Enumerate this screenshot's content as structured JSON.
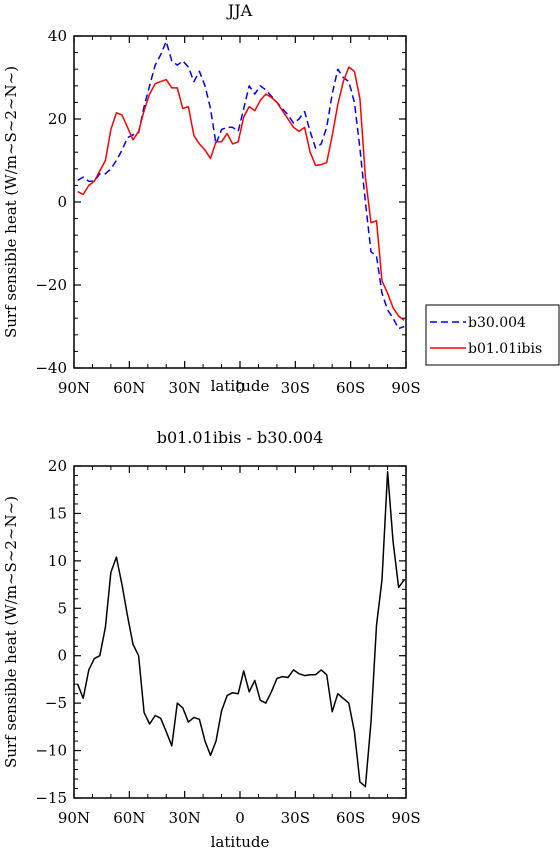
{
  "colors": {
    "series1": "#0000ff",
    "series2": "#ff0000",
    "diff": "#000000",
    "axis": "#000000"
  },
  "chart_data": [
    {
      "type": "line",
      "title": "JJA",
      "xlabel": "latitude",
      "ylabel": "Surf sensible heat (W/m~S~2~N~)",
      "x_tick_labels": [
        "90N",
        "60N",
        "30N",
        "0",
        "30S",
        "60S",
        "90S"
      ],
      "x_tick_values": [
        -90,
        -60,
        -30,
        0,
        30,
        60,
        90
      ],
      "xlim": [
        -90,
        90
      ],
      "ylim": [
        -40,
        40
      ],
      "y_ticks": [
        -40,
        -20,
        0,
        20,
        40
      ],
      "y_tick_labels": [
        "−40",
        "−20",
        "0",
        "20",
        "40"
      ],
      "legend_position": "right",
      "x": [
        -88,
        -85,
        -82,
        -79,
        -76,
        -73,
        -70,
        -67,
        -64,
        -61,
        -58,
        -55,
        -52,
        -49,
        -46,
        -43,
        -40,
        -37,
        -34,
        -31,
        -28,
        -25,
        -22,
        -19,
        -16,
        -13,
        -10,
        -7,
        -4,
        -1,
        2,
        5,
        8,
        11,
        14,
        17,
        20,
        23,
        26,
        29,
        32,
        35,
        38,
        41,
        44,
        47,
        50,
        53,
        56,
        59,
        62,
        65,
        68,
        71,
        74,
        77,
        80,
        83,
        86,
        89
      ],
      "series": [
        {
          "name": "b30.004",
          "style": "dashed",
          "values": [
            5.2,
            6,
            5,
            5,
            6.8,
            6.8,
            8,
            10,
            12.5,
            15.5,
            16.2,
            16.7,
            23,
            28,
            33,
            35.5,
            38.7,
            34,
            33,
            34,
            32.5,
            29,
            31.5,
            28,
            22.5,
            14,
            17.5,
            18,
            18,
            17,
            22.5,
            28,
            26,
            28,
            27,
            25.5,
            24,
            22.5,
            21,
            19,
            20,
            21.8,
            17,
            13,
            14,
            18,
            26,
            32,
            30,
            29,
            24,
            13,
            0,
            -12,
            -13,
            -22,
            -26,
            -28,
            -30.5,
            -30
          ]
        },
        {
          "name": "b01.01ibis",
          "style": "solid",
          "values": [
            2.5,
            1.8,
            4,
            5,
            7.5,
            10,
            17.5,
            21.5,
            21,
            18,
            15,
            17,
            22,
            26,
            28.5,
            29,
            29.5,
            27.5,
            27.5,
            22.5,
            23,
            16,
            14,
            12.5,
            10.5,
            14.5,
            14.5,
            16.5,
            14,
            14.5,
            20.5,
            23,
            22,
            24.5,
            26,
            25.2,
            24,
            22,
            20,
            18,
            17,
            18,
            12,
            8.8,
            9,
            9.5,
            16,
            23.5,
            29,
            32.5,
            31.5,
            25,
            6,
            -5,
            -4.5,
            -19,
            -22,
            -25.5,
            -27.5,
            -28.5
          ]
        }
      ]
    },
    {
      "type": "line",
      "title": "b01.01ibis - b30.004",
      "xlabel": "latitude",
      "ylabel": "Surf sensible heat (W/m~S~2~N~)",
      "x_tick_labels": [
        "90N",
        "60N",
        "30N",
        "0",
        "30S",
        "60S",
        "90S"
      ],
      "x_tick_values": [
        -90,
        -60,
        -30,
        0,
        30,
        60,
        90
      ],
      "xlim": [
        -90,
        90
      ],
      "ylim": [
        -15,
        20
      ],
      "y_ticks": [
        -15,
        -10,
        -5,
        0,
        5,
        10,
        15,
        20
      ],
      "y_tick_labels": [
        "−15",
        "−10",
        "−5",
        "0",
        "5",
        "10",
        "15",
        "20"
      ],
      "x": [
        -88,
        -85,
        -82,
        -79,
        -76,
        -73,
        -70,
        -67,
        -64,
        -61,
        -58,
        -55,
        -52,
        -49,
        -46,
        -43,
        -40,
        -37,
        -34,
        -31,
        -28,
        -25,
        -22,
        -19,
        -16,
        -13,
        -10,
        -7,
        -4,
        -1,
        2,
        5,
        8,
        11,
        14,
        17,
        20,
        23,
        26,
        29,
        32,
        35,
        38,
        41,
        44,
        47,
        50,
        53,
        56,
        59,
        62,
        65,
        68,
        71,
        74,
        77,
        80,
        83,
        86,
        89
      ],
      "series": [
        {
          "style": "solid",
          "values": [
            -3,
            -4.5,
            -1.5,
            -0.3,
            0,
            3,
            8.8,
            10.4,
            7.5,
            4.2,
            1.2,
            0,
            -6,
            -7.2,
            -6.3,
            -6.6,
            -8,
            -9.5,
            -5,
            -5.5,
            -7,
            -6.5,
            -6.7,
            -9,
            -10.5,
            -9,
            -5.8,
            -4.2,
            -3.9,
            -4,
            -1.6,
            -3.8,
            -2.6,
            -4.7,
            -5,
            -3.8,
            -2.4,
            -2.2,
            -2.3,
            -1.5,
            -1.9,
            -2.1,
            -2,
            -2,
            -1.5,
            -2,
            -5.9,
            -4,
            -4.5,
            -5,
            -8,
            -13.3,
            -13.8,
            -7,
            3.2,
            8,
            19.4,
            12,
            7.2,
            8
          ]
        }
      ]
    }
  ]
}
